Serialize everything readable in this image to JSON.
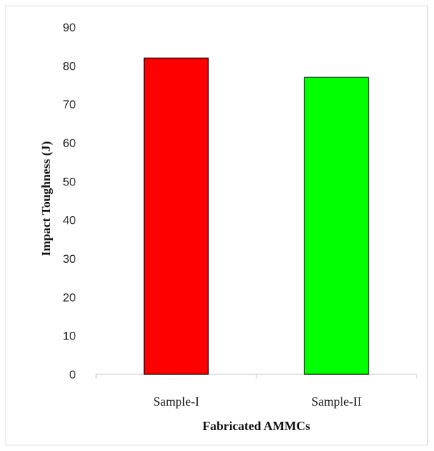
{
  "chart_data": {
    "type": "bar",
    "categories": [
      "Sample-I",
      "Sample-II"
    ],
    "values": [
      82,
      77
    ],
    "colors": [
      "#ff0000",
      "#00ff00"
    ],
    "bar_outline": "#000000",
    "title": "",
    "xlabel": "Fabricated AMMCs",
    "ylabel": "Impact Toughness (J)",
    "ylim": [
      0,
      90
    ],
    "yticks": [
      0,
      10,
      20,
      30,
      40,
      50,
      60,
      70,
      80,
      90
    ],
    "grid": false,
    "legend": "none"
  }
}
